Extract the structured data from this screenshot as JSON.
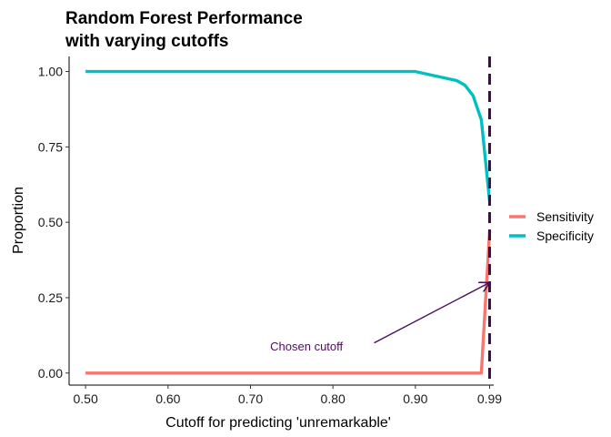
{
  "chart_data": {
    "type": "line",
    "title_lines": [
      "Random Forest Performance",
      "with varying cutoffs"
    ],
    "xlabel": "Cutoff for predicting 'unremarkable'",
    "ylabel": "Proportion",
    "xlim": [
      0.48,
      0.995
    ],
    "ylim": [
      -0.04,
      1.05
    ],
    "x_ticks": [
      0.5,
      0.6,
      0.7,
      0.8,
      0.9,
      0.99
    ],
    "x_tick_labels": [
      "0.50",
      "0.60",
      "0.70",
      "0.80",
      "0.90",
      "0.99"
    ],
    "y_ticks": [
      0,
      0.25,
      0.5,
      0.75,
      1
    ],
    "y_tick_labels": [
      "0.00",
      "0.25",
      "0.50",
      "0.75",
      "1.00"
    ],
    "grid": false,
    "legend_position": "right",
    "series": [
      {
        "name": "Sensitivity",
        "color": "#f8766d",
        "points": [
          [
            0.5,
            0.0
          ],
          [
            0.6,
            0.0
          ],
          [
            0.7,
            0.0
          ],
          [
            0.8,
            0.0
          ],
          [
            0.9,
            0.0
          ],
          [
            0.97,
            0.0
          ],
          [
            0.98,
            0.0
          ],
          [
            0.99,
            0.47
          ]
        ]
      },
      {
        "name": "Specificity",
        "color": "#00bfc4",
        "points": [
          [
            0.5,
            1.0
          ],
          [
            0.6,
            1.0
          ],
          [
            0.7,
            1.0
          ],
          [
            0.8,
            1.0
          ],
          [
            0.9,
            1.0
          ],
          [
            0.95,
            0.97
          ],
          [
            0.96,
            0.955
          ],
          [
            0.97,
            0.92
          ],
          [
            0.98,
            0.84
          ],
          [
            0.99,
            0.57
          ]
        ]
      }
    ],
    "vline": {
      "x": 0.99,
      "color": "#3d0a4a",
      "style": "dashed"
    },
    "annotation": {
      "text": "Chosen cutoff",
      "color": "#4a0e5c",
      "text_at": [
        0.768,
        0.09
      ],
      "arrow_from": [
        0.85,
        0.1
      ],
      "arrow_to": [
        0.99,
        0.3
      ]
    }
  }
}
